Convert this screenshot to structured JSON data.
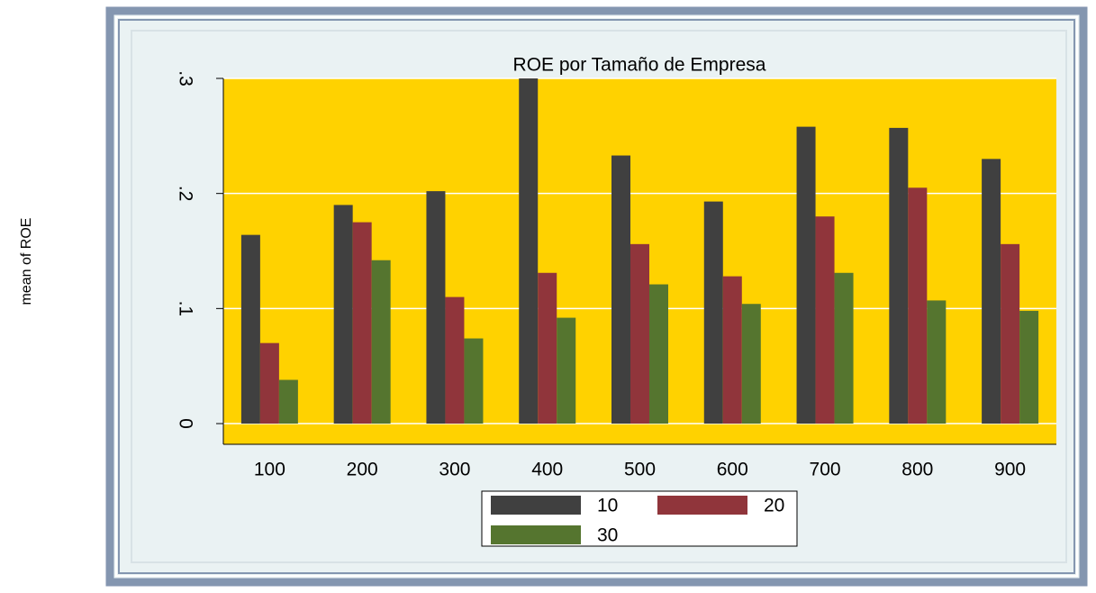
{
  "chart_data": {
    "type": "bar",
    "title": "ROE por Tamaño de Empresa",
    "y_label": "mean of ROE",
    "categories": [
      "100",
      "200",
      "300",
      "400",
      "500",
      "600",
      "700",
      "800",
      "900"
    ],
    "series": [
      {
        "name": "10",
        "color": "#404040",
        "values": [
          0.164,
          0.19,
          0.202,
          0.3,
          0.233,
          0.193,
          0.258,
          0.257,
          0.23
        ]
      },
      {
        "name": "20",
        "color": "#90353b",
        "values": [
          0.07,
          0.175,
          0.11,
          0.131,
          0.156,
          0.128,
          0.18,
          0.205,
          0.156
        ]
      },
      {
        "name": "30",
        "color": "#55752f",
        "values": [
          0.038,
          0.142,
          0.074,
          0.092,
          0.121,
          0.104,
          0.131,
          0.107,
          0.098
        ]
      }
    ],
    "ylim": [
      -0.018,
      0.3
    ],
    "yticks": [
      0,
      {
        "value": 0.1,
        "label": ".1"
      },
      {
        "value": 0.2,
        "label": ".2"
      },
      {
        "value": 0.3,
        "label": ".3"
      }
    ],
    "grid": true,
    "plot_background": "#ffd200"
  }
}
